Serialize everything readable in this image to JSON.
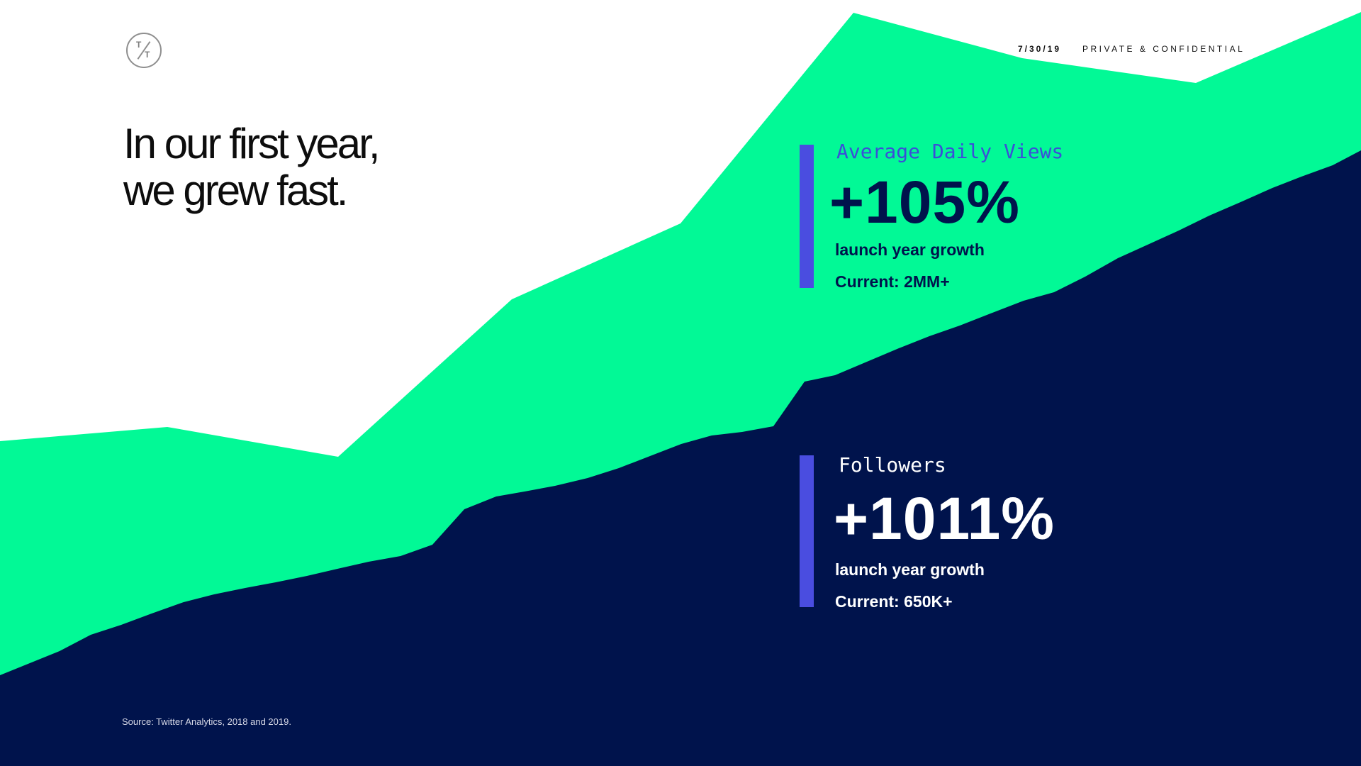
{
  "header": {
    "date": "7/30/19",
    "confidential": "PRIVATE & CONFIDENTIAL",
    "logo_top": "T",
    "logo_bottom": "T"
  },
  "headline": {
    "line1": "In our first year,",
    "line2": "we grew fast."
  },
  "stats": {
    "views": {
      "label": "Average Daily Views",
      "value": "+105%",
      "growth": "launch year growth",
      "current": "Current: 2MM+"
    },
    "followers": {
      "label": "Followers",
      "value": "+1011%",
      "growth": "launch year growth",
      "current": "Current: 650K+"
    }
  },
  "source": "Source: Twitter Analytics, 2018 and 2019.",
  "colors": {
    "green": "#02f996",
    "navy": "#00134c",
    "accent_bar": "#4a4de0",
    "views_label": "#3b4ed8"
  }
}
